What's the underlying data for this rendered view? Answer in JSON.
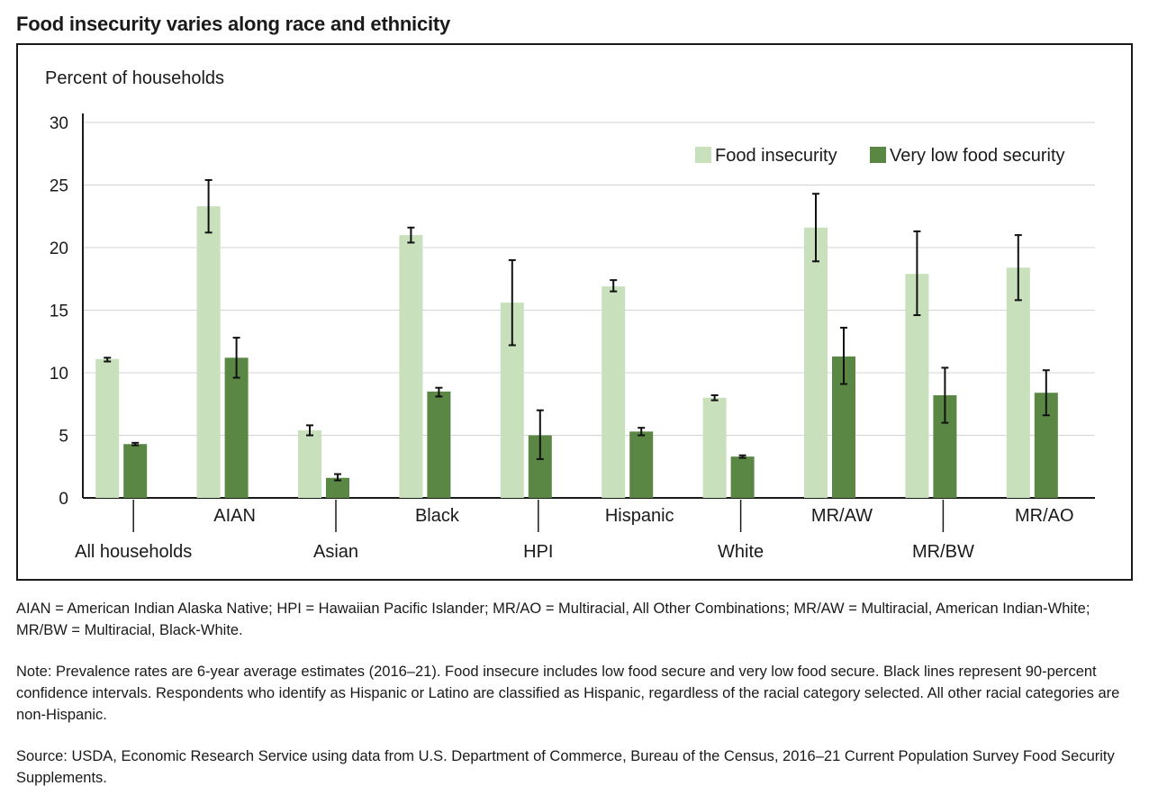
{
  "title": "Food insecurity varies along race and ethnicity",
  "chart_data": {
    "type": "bar",
    "ylabel": "Percent of households",
    "ylim": [
      0,
      30
    ],
    "yticks": [
      0,
      5,
      10,
      15,
      20,
      25,
      30
    ],
    "grid": true,
    "legend_position": "top-right",
    "categories": [
      "All households",
      "AIAN",
      "Asian",
      "Black",
      "HPI",
      "Hispanic",
      "White",
      "MR/AW",
      "MR/BW",
      "MR/AO"
    ],
    "series": [
      {
        "name": "Food insecurity",
        "color": "#c8e0bb",
        "values": [
          11.1,
          23.3,
          5.4,
          21.0,
          15.6,
          16.9,
          8.0,
          21.6,
          17.9,
          18.4
        ],
        "ci_low": [
          10.9,
          21.2,
          5.0,
          20.4,
          12.2,
          16.5,
          7.8,
          18.9,
          14.6,
          15.8
        ],
        "ci_high": [
          11.2,
          25.4,
          5.8,
          21.6,
          19.0,
          17.4,
          8.2,
          24.3,
          21.3,
          21.0
        ]
      },
      {
        "name": "Very low food security",
        "color": "#5a8743",
        "values": [
          4.3,
          11.2,
          1.6,
          8.5,
          5.0,
          5.3,
          3.3,
          11.3,
          8.2,
          8.4
        ],
        "ci_low": [
          4.2,
          9.6,
          1.4,
          8.1,
          3.1,
          5.0,
          3.2,
          9.1,
          6.0,
          6.6
        ],
        "ci_high": [
          4.4,
          12.8,
          1.9,
          8.8,
          7.0,
          5.6,
          3.4,
          13.6,
          10.4,
          10.2
        ]
      }
    ]
  },
  "notes": {
    "abbrev": "AIAN = American Indian Alaska Native; HPI = Hawaiian Pacific Islander; MR/AO = Multiracial, All Other Combinations; MR/AW = Multiracial, American Indian-White; MR/BW = Multiracial, Black-White.",
    "note": "Note: Prevalence rates are 6-year average estimates (2016–21). Food insecure includes low food secure and very low food secure. Black lines represent 90-percent confidence intervals. Respondents who identify as Hispanic or Latino are classified as Hispanic, regardless of the racial category selected. All other racial categories are non-Hispanic.",
    "source": "Source: USDA, Economic Research Service using data from U.S. Department of Commerce, Bureau of the Census, 2016–21 Current Population Survey Food Security Supplements."
  }
}
